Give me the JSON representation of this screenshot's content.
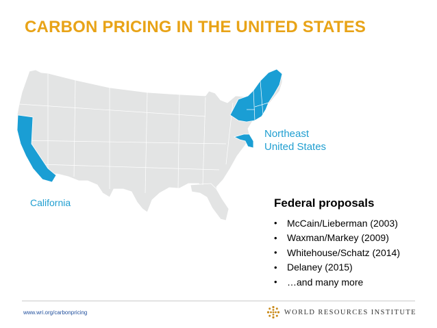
{
  "title": "CARBON PRICING IN THE UNITED STATES",
  "map": {
    "base_color": "#e3e4e4",
    "highlight_color": "#1a9ed4",
    "regions": [
      {
        "label": "Northeast\nUnited States",
        "highlighted": true
      },
      {
        "label": "California",
        "highlighted": true
      }
    ]
  },
  "proposals": {
    "heading": "Federal proposals",
    "bullet": "•",
    "items": [
      "McCain/Lieberman (2003)",
      "Waxman/Markey (2009)",
      "Whitehouse/Schatz (2014)",
      "Delaney (2015)",
      "…and many more"
    ]
  },
  "footer": {
    "url": "www.wri.org/carbonpricing",
    "org_name": "WORLD RESOURCES INSTITUTE",
    "logo_icon": "wri-dots-logo-icon",
    "logo_color": "#c98a1b"
  }
}
